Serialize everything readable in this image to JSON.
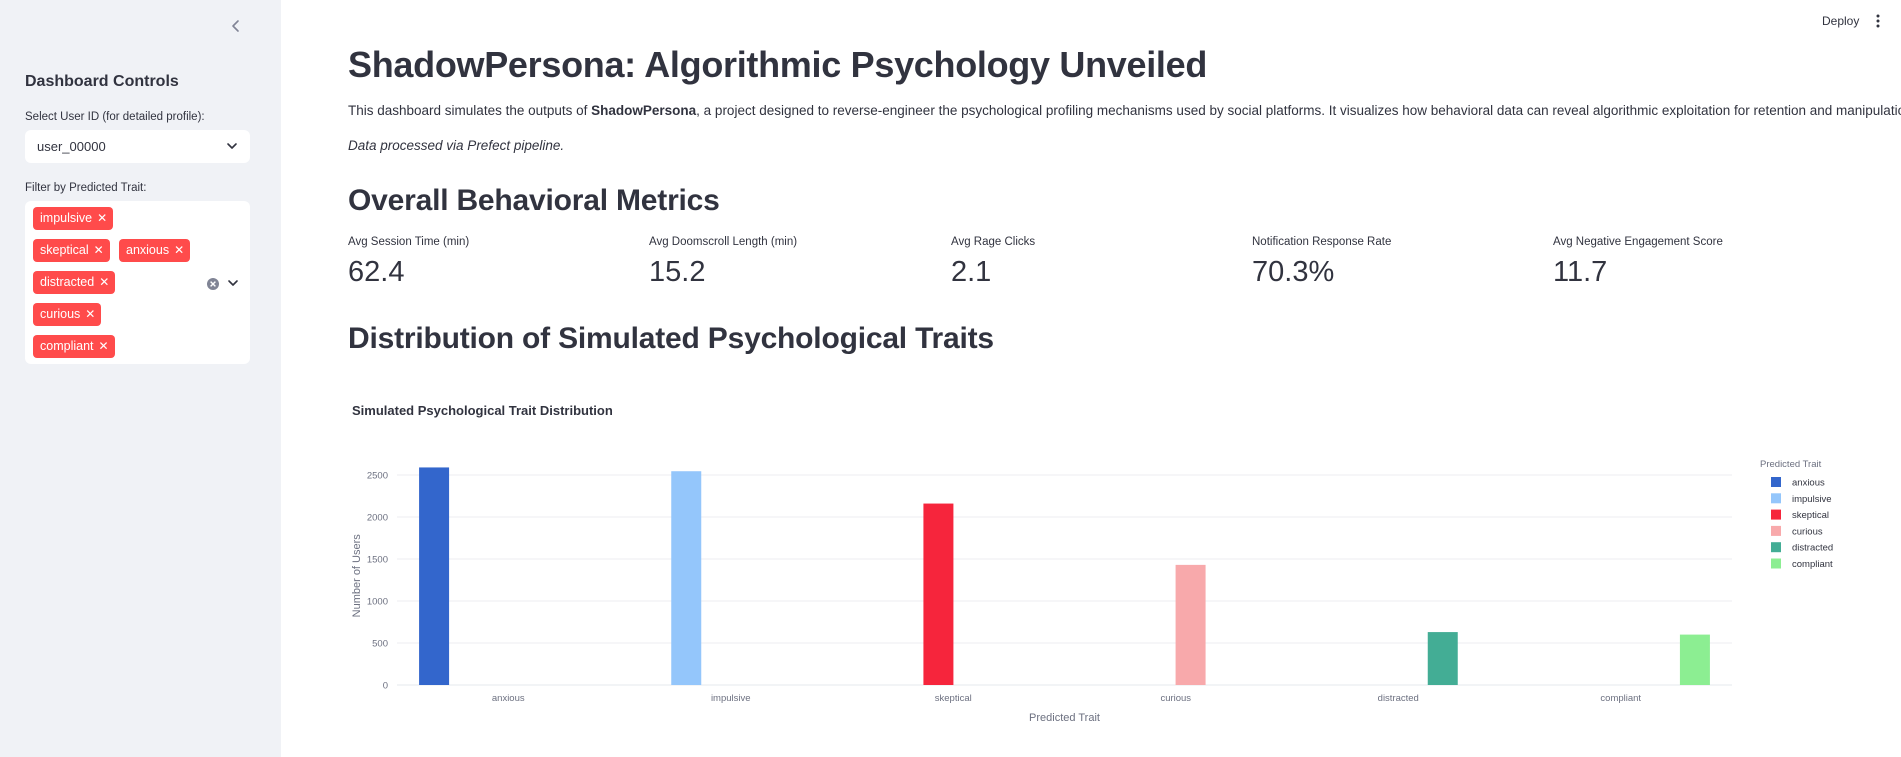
{
  "sidebar": {
    "title": "Dashboard Controls",
    "user_select_label": "Select User ID (for detailed profile):",
    "user_select_value": "user_00000",
    "trait_filter_label": "Filter by Predicted Trait:",
    "trait_tags": [
      "impulsive",
      "skeptical",
      "anxious",
      "distracted",
      "curious",
      "compliant"
    ]
  },
  "header": {
    "deploy_label": "Deploy"
  },
  "main": {
    "title": "ShadowPersona: Algorithmic Psychology Unveiled",
    "intro_prefix": "This dashboard simulates the outputs of ",
    "intro_bold": "ShadowPersona",
    "intro_suffix": ", a project designed to reverse-engineer the psychological profiling mechanisms used by social platforms. It visualizes how behavioral data can reveal algorithmic exploitation for retention and manipulation.",
    "note": "Data processed via Prefect pipeline.",
    "metrics_heading": "Overall Behavioral Metrics",
    "metrics": [
      {
        "label": "Avg Session Time (min)",
        "value": "62.4"
      },
      {
        "label": "Avg Doomscroll Length (min)",
        "value": "15.2"
      },
      {
        "label": "Avg Rage Clicks",
        "value": "2.1"
      },
      {
        "label": "Notification Response Rate",
        "value": "70.3%"
      },
      {
        "label": "Avg Negative Engagement Score",
        "value": "11.7"
      }
    ],
    "distribution_heading": "Distribution of Simulated Psychological Traits"
  },
  "chart_data": {
    "type": "bar",
    "title": "Simulated Psychological Trait Distribution",
    "xlabel": "Predicted Trait",
    "ylabel": "Number of Users",
    "categories": [
      "anxious",
      "impulsive",
      "skeptical",
      "curious",
      "distracted",
      "compliant"
    ],
    "series": [
      {
        "name": "anxious",
        "category": "anxious",
        "value": 2590,
        "color": "#3366cc"
      },
      {
        "name": "impulsive",
        "category": "impulsive",
        "value": 2545,
        "color": "#94c6fb"
      },
      {
        "name": "skeptical",
        "category": "skeptical",
        "value": 2160,
        "color": "#f6253c"
      },
      {
        "name": "curious",
        "category": "curious",
        "value": 1430,
        "color": "#f8a9ab"
      },
      {
        "name": "distracted",
        "category": "distracted",
        "value": 630,
        "color": "#43ad95"
      },
      {
        "name": "compliant",
        "category": "compliant",
        "value": 600,
        "color": "#8cee92"
      }
    ],
    "yticks": [
      "0",
      "500",
      "1000",
      "1500",
      "2000",
      "2500"
    ],
    "ylim": [
      0,
      2700
    ],
    "legend_title": "Predicted Trait",
    "legend_position": "right",
    "grid": true
  }
}
